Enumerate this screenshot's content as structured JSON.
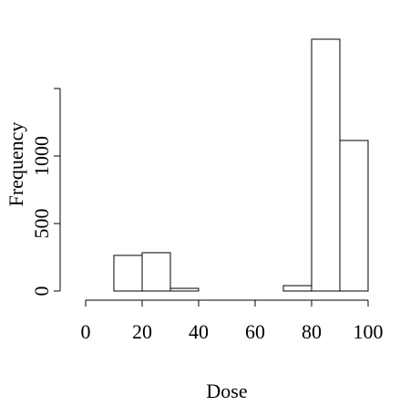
{
  "chart_data": {
    "type": "histogram",
    "xlabel": "Dose",
    "ylabel": "Frequency",
    "bins": [
      10,
      20,
      30,
      40,
      50,
      60,
      70,
      80,
      90,
      100
    ],
    "values": [
      264,
      284,
      20,
      0,
      0,
      0,
      40,
      1865,
      1115
    ],
    "color": "#ffffff",
    "edgecolor": "#000000",
    "xlim": [
      0,
      100
    ],
    "xticks": [
      0,
      20,
      40,
      60,
      80,
      100
    ],
    "ylim": [
      0,
      1900
    ],
    "yticks": [
      0,
      500,
      1000
    ],
    "yticks_unlabeled": [
      1500
    ],
    "grid": false
  }
}
